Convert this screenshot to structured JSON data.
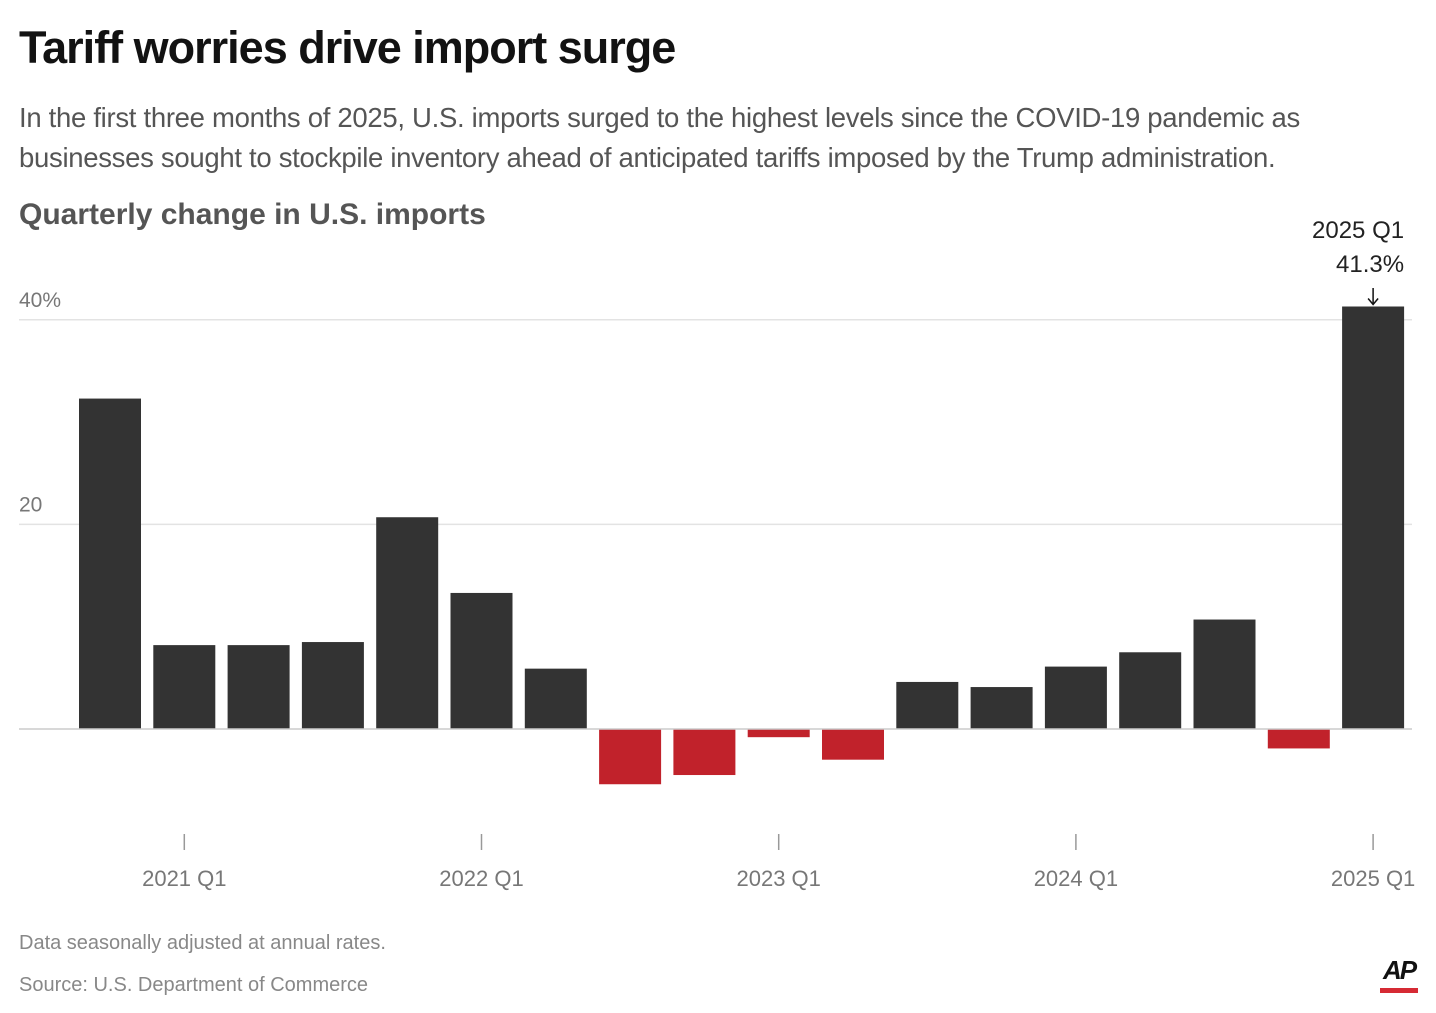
{
  "header": {
    "title": "Tariff worries drive import surge",
    "subtitle": "In the first three months of 2025, U.S. imports surged to the highest levels since the COVID-19 pandemic as businesses sought to stockpile inventory ahead of anticipated tariffs imposed by the Trump administration.",
    "chart_heading": "Quarterly change in U.S. imports"
  },
  "colors": {
    "positive": "#333333",
    "negative": "#c1222b",
    "gridline": "#e3e3e3",
    "axis_text": "#777777",
    "brand_red": "#d62a34"
  },
  "chart_data": {
    "type": "bar",
    "title": "Quarterly change in U.S. imports",
    "xlabel": "",
    "ylabel": "",
    "ylim": [
      -10,
      42
    ],
    "grid": true,
    "yticks": [
      {
        "value": 20,
        "label": "20"
      },
      {
        "value": 40,
        "label": "40%"
      }
    ],
    "xticks": [
      {
        "category": "2021 Q1",
        "label": "2021 Q1"
      },
      {
        "category": "2022 Q1",
        "label": "2022 Q1"
      },
      {
        "category": "2023 Q1",
        "label": "2023 Q1"
      },
      {
        "category": "2024 Q1",
        "label": "2024 Q1"
      },
      {
        "category": "2025 Q1",
        "label": "2025 Q1"
      }
    ],
    "categories": [
      "2020 Q4",
      "2021 Q1",
      "2021 Q2",
      "2021 Q3",
      "2021 Q4",
      "2022 Q1",
      "2022 Q2",
      "2022 Q3",
      "2022 Q4",
      "2023 Q1",
      "2023 Q2",
      "2023 Q3",
      "2023 Q4",
      "2024 Q1",
      "2024 Q2",
      "2024 Q3",
      "2024 Q4",
      "2025 Q1"
    ],
    "values": [
      32.3,
      8.2,
      8.2,
      8.5,
      20.7,
      13.3,
      5.9,
      -5.4,
      -4.5,
      -0.8,
      -3.0,
      4.6,
      4.1,
      6.1,
      7.5,
      10.7,
      -1.9,
      41.3
    ],
    "annotation": {
      "category": "2025 Q1",
      "line1": "2025 Q1",
      "line2": "41.3%",
      "arrow": "↓"
    }
  },
  "footer": {
    "note": "Data seasonally adjusted at annual rates.",
    "source": "Source: U.S. Department of Commerce",
    "logo_text": "AP"
  }
}
